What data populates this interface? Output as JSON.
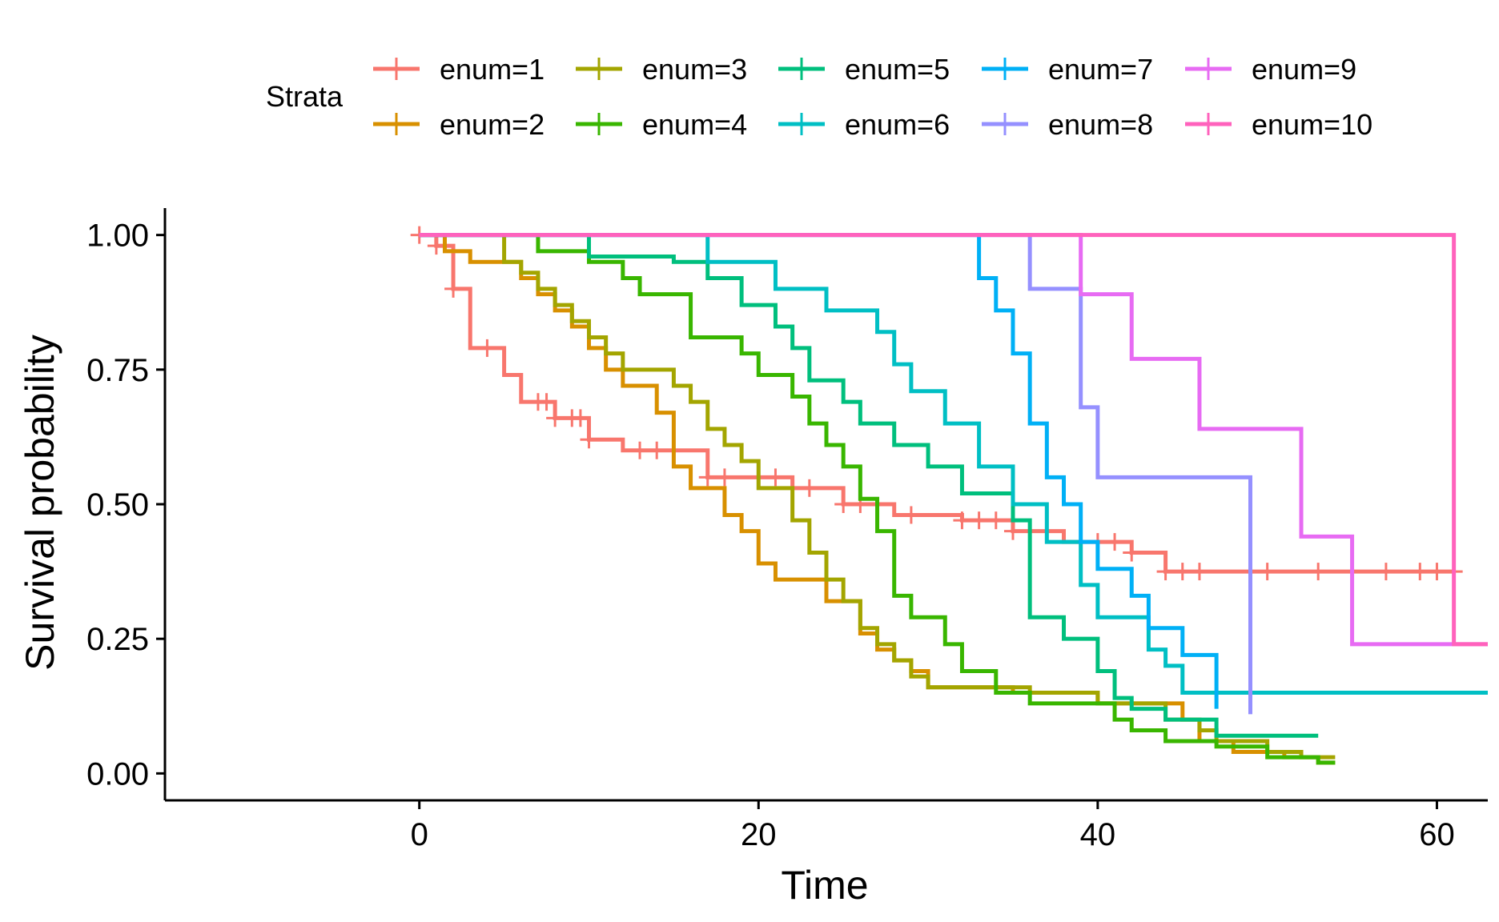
{
  "chart_data": {
    "type": "line",
    "subtype": "kaplan-meier step",
    "title": "",
    "xlabel": "Time",
    "ylabel": "Survival probability",
    "xlim": [
      -15,
      63
    ],
    "ylim": [
      -0.05,
      1.05
    ],
    "xticks": [
      0,
      20,
      40,
      60
    ],
    "yticks": [
      0.0,
      0.25,
      0.5,
      0.75,
      1.0
    ],
    "ytick_labels": [
      "0.00",
      "0.25",
      "0.50",
      "0.75",
      "1.00"
    ],
    "grid": false,
    "legend_title": "Strata",
    "legend_position": "top",
    "series": [
      {
        "name": "enum=1",
        "color": "#F8766D",
        "steps": [
          [
            0,
            1.0
          ],
          [
            1,
            0.98
          ],
          [
            2,
            0.9
          ],
          [
            3,
            0.79
          ],
          [
            5,
            0.74
          ],
          [
            6,
            0.69
          ],
          [
            8,
            0.66
          ],
          [
            10,
            0.62
          ],
          [
            12,
            0.6
          ],
          [
            17,
            0.55
          ],
          [
            22,
            0.53
          ],
          [
            25,
            0.5
          ],
          [
            28,
            0.48
          ],
          [
            32,
            0.47
          ],
          [
            35,
            0.45
          ],
          [
            38,
            0.43
          ],
          [
            42,
            0.41
          ],
          [
            44,
            0.375
          ]
        ],
        "end": 61,
        "censor": [
          0,
          1,
          2,
          4,
          7,
          7.5,
          8,
          9,
          9.5,
          10,
          13,
          14,
          15,
          17,
          18,
          21,
          22,
          23,
          25,
          26,
          29,
          32,
          33,
          34,
          35,
          36,
          37,
          39,
          40,
          41,
          42,
          44,
          45,
          46,
          49,
          50,
          53,
          55,
          57,
          59,
          60,
          61
        ]
      },
      {
        "name": "enum=2",
        "color": "#D89000",
        "steps": [
          [
            0,
            1.0
          ],
          [
            1.5,
            0.97
          ],
          [
            3,
            0.95
          ],
          [
            6,
            0.92
          ],
          [
            7,
            0.89
          ],
          [
            8,
            0.86
          ],
          [
            9,
            0.83
          ],
          [
            10,
            0.79
          ],
          [
            11,
            0.75
          ],
          [
            12,
            0.72
          ],
          [
            14,
            0.67
          ],
          [
            15,
            0.57
          ],
          [
            16,
            0.53
          ],
          [
            18,
            0.48
          ],
          [
            19,
            0.45
          ],
          [
            20,
            0.39
          ],
          [
            21,
            0.36
          ],
          [
            24,
            0.32
          ],
          [
            26,
            0.26
          ],
          [
            27,
            0.23
          ],
          [
            28,
            0.21
          ],
          [
            29,
            0.19
          ],
          [
            30,
            0.16
          ],
          [
            35,
            0.15
          ],
          [
            40,
            0.13
          ],
          [
            45,
            0.1
          ],
          [
            46,
            0.06
          ],
          [
            48,
            0.04
          ],
          [
            51,
            0.03
          ],
          [
            53,
            0.02
          ]
        ],
        "end": 54,
        "censor": []
      },
      {
        "name": "enum=3",
        "color": "#A3A500",
        "steps": [
          [
            0,
            1.0
          ],
          [
            5,
            0.95
          ],
          [
            6,
            0.93
          ],
          [
            7,
            0.9
          ],
          [
            8,
            0.87
          ],
          [
            9,
            0.84
          ],
          [
            10,
            0.81
          ],
          [
            11,
            0.78
          ],
          [
            12,
            0.75
          ],
          [
            15,
            0.72
          ],
          [
            16,
            0.69
          ],
          [
            17,
            0.64
          ],
          [
            18,
            0.61
          ],
          [
            19,
            0.58
          ],
          [
            20,
            0.53
          ],
          [
            22,
            0.47
          ],
          [
            23,
            0.41
          ],
          [
            24,
            0.36
          ],
          [
            25,
            0.32
          ],
          [
            26,
            0.27
          ],
          [
            27,
            0.24
          ],
          [
            28,
            0.21
          ],
          [
            29,
            0.18
          ],
          [
            30,
            0.16
          ],
          [
            36,
            0.15
          ],
          [
            40,
            0.13
          ],
          [
            44,
            0.1
          ],
          [
            46,
            0.08
          ],
          [
            47,
            0.06
          ],
          [
            50,
            0.04
          ],
          [
            52,
            0.03
          ]
        ],
        "end": 54,
        "censor": []
      },
      {
        "name": "enum=4",
        "color": "#39B600",
        "steps": [
          [
            0,
            1.0
          ],
          [
            7,
            0.97
          ],
          [
            10,
            0.95
          ],
          [
            12,
            0.92
          ],
          [
            13,
            0.89
          ],
          [
            16,
            0.81
          ],
          [
            19,
            0.78
          ],
          [
            20,
            0.74
          ],
          [
            22,
            0.7
          ],
          [
            23,
            0.65
          ],
          [
            24,
            0.61
          ],
          [
            25,
            0.57
          ],
          [
            26,
            0.51
          ],
          [
            27,
            0.45
          ],
          [
            28,
            0.33
          ],
          [
            29,
            0.29
          ],
          [
            31,
            0.24
          ],
          [
            32,
            0.19
          ],
          [
            34,
            0.15
          ],
          [
            36,
            0.13
          ],
          [
            41,
            0.1
          ],
          [
            42,
            0.08
          ],
          [
            44,
            0.06
          ],
          [
            47,
            0.05
          ],
          [
            50,
            0.03
          ],
          [
            53,
            0.02
          ]
        ],
        "end": 54,
        "censor": []
      },
      {
        "name": "enum=5",
        "color": "#00BF7D",
        "steps": [
          [
            0,
            1.0
          ],
          [
            10,
            0.96
          ],
          [
            15,
            0.95
          ],
          [
            17,
            0.92
          ],
          [
            19,
            0.87
          ],
          [
            21,
            0.83
          ],
          [
            22,
            0.79
          ],
          [
            23,
            0.73
          ],
          [
            25,
            0.69
          ],
          [
            26,
            0.65
          ],
          [
            28,
            0.61
          ],
          [
            30,
            0.57
          ],
          [
            32,
            0.52
          ],
          [
            35,
            0.47
          ],
          [
            36,
            0.29
          ],
          [
            38,
            0.25
          ],
          [
            40,
            0.19
          ],
          [
            41,
            0.14
          ],
          [
            42,
            0.12
          ],
          [
            44,
            0.1
          ],
          [
            47,
            0.07
          ]
        ],
        "end": 53,
        "censor": []
      },
      {
        "name": "enum=6",
        "color": "#00BFC4",
        "steps": [
          [
            0,
            1.0
          ],
          [
            17,
            0.95
          ],
          [
            21,
            0.9
          ],
          [
            24,
            0.86
          ],
          [
            27,
            0.82
          ],
          [
            28,
            0.76
          ],
          [
            29,
            0.71
          ],
          [
            31,
            0.65
          ],
          [
            33,
            0.57
          ],
          [
            35,
            0.5
          ],
          [
            37,
            0.43
          ],
          [
            39,
            0.35
          ],
          [
            40,
            0.29
          ],
          [
            43,
            0.23
          ],
          [
            44,
            0.2
          ],
          [
            45,
            0.15
          ]
        ],
        "end": 63,
        "censor": []
      },
      {
        "name": "enum=7",
        "color": "#00B0F6",
        "steps": [
          [
            0,
            1.0
          ],
          [
            33,
            0.92
          ],
          [
            34,
            0.86
          ],
          [
            35,
            0.78
          ],
          [
            36,
            0.65
          ],
          [
            37,
            0.55
          ],
          [
            38,
            0.5
          ],
          [
            39,
            0.43
          ],
          [
            40,
            0.38
          ],
          [
            42,
            0.33
          ],
          [
            43,
            0.27
          ],
          [
            45,
            0.22
          ],
          [
            47,
            0.12
          ]
        ],
        "end": 47,
        "censor": []
      },
      {
        "name": "enum=8",
        "color": "#9590FF",
        "steps": [
          [
            0,
            1.0
          ],
          [
            36,
            0.9
          ],
          [
            39,
            0.68
          ],
          [
            40,
            0.55
          ],
          [
            49,
            0.11
          ]
        ],
        "end": 49,
        "censor": []
      },
      {
        "name": "enum=9",
        "color": "#E76BF3",
        "steps": [
          [
            0,
            1.0
          ],
          [
            39,
            0.89
          ],
          [
            42,
            0.77
          ],
          [
            46,
            0.64
          ],
          [
            52,
            0.44
          ],
          [
            55,
            0.24
          ]
        ],
        "end": 63,
        "censor": []
      },
      {
        "name": "enum=10",
        "color": "#FF62BC",
        "steps": [
          [
            0,
            1.0
          ],
          [
            61,
            0.24
          ]
        ],
        "end": 63,
        "censor": []
      }
    ]
  }
}
